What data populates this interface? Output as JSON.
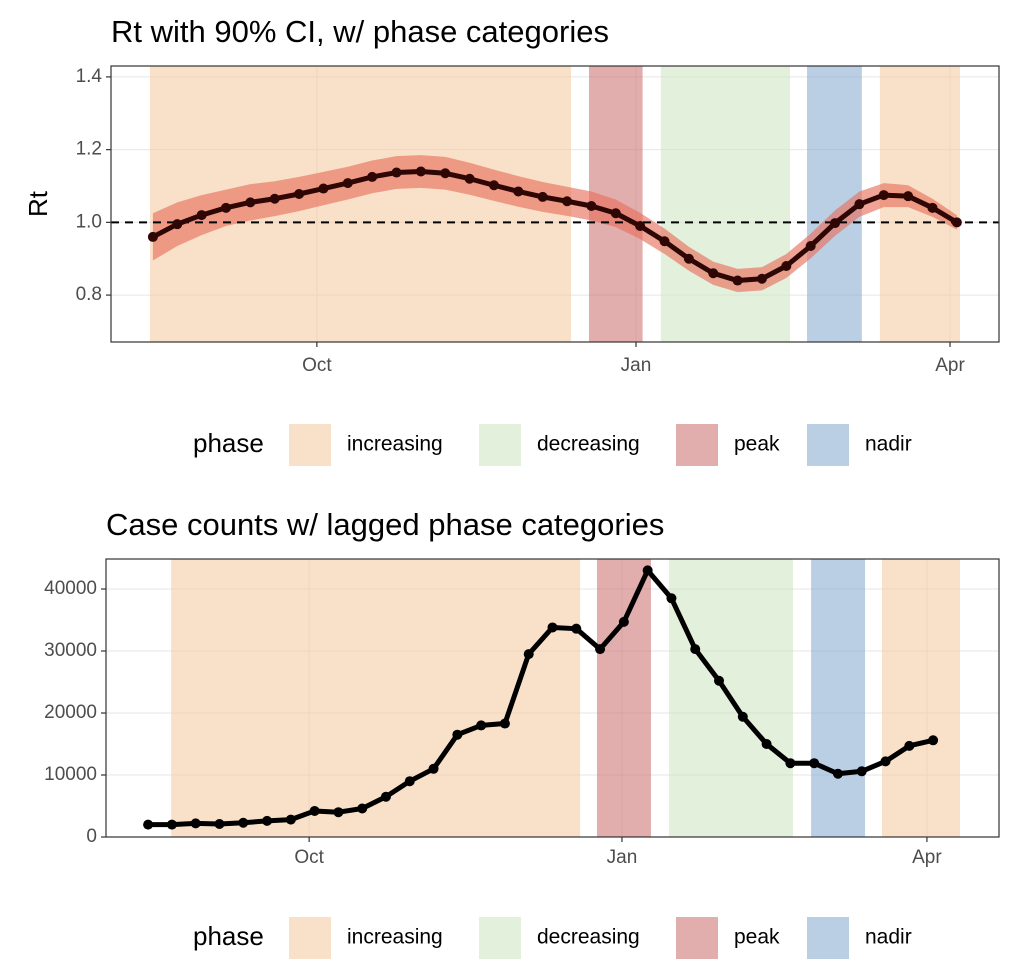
{
  "chart_data": [
    {
      "type": "line",
      "title": "Rt with 90% CI, w/ phase categories",
      "y_label": "Rt",
      "x": [
        0,
        1,
        2,
        3,
        4,
        5,
        6,
        7,
        8,
        9,
        10,
        11,
        12,
        13,
        14,
        15,
        16,
        17,
        18,
        19,
        20,
        21,
        22,
        23,
        24,
        25,
        26,
        27,
        28,
        29,
        30,
        31,
        32,
        33
      ],
      "values": [
        0.96,
        0.995,
        1.02,
        1.04,
        1.055,
        1.065,
        1.078,
        1.093,
        1.108,
        1.125,
        1.137,
        1.14,
        1.135,
        1.12,
        1.102,
        1.085,
        1.07,
        1.058,
        1.045,
        1.025,
        0.99,
        0.948,
        0.9,
        0.86,
        0.84,
        0.845,
        0.88,
        0.935,
        0.998,
        1.05,
        1.075,
        1.072,
        1.04,
        1.0
      ],
      "lower": [
        0.895,
        0.935,
        0.965,
        0.99,
        1.005,
        1.017,
        1.031,
        1.047,
        1.063,
        1.08,
        1.092,
        1.095,
        1.09,
        1.076,
        1.059,
        1.043,
        1.029,
        1.018,
        1.005,
        0.987,
        0.954,
        0.913,
        0.867,
        0.828,
        0.808,
        0.813,
        0.847,
        0.901,
        0.963,
        1.015,
        1.042,
        1.042,
        1.015,
        0.98
      ],
      "upper": [
        1.025,
        1.055,
        1.075,
        1.09,
        1.105,
        1.113,
        1.125,
        1.139,
        1.153,
        1.17,
        1.182,
        1.185,
        1.18,
        1.164,
        1.145,
        1.127,
        1.111,
        1.098,
        1.085,
        1.063,
        1.026,
        0.983,
        0.933,
        0.892,
        0.872,
        0.877,
        0.913,
        0.969,
        1.033,
        1.085,
        1.108,
        1.102,
        1.065,
        1.02
      ],
      "color": "#2e0604",
      "ci_color": "#e8715f",
      "hline": 1,
      "xlim": [
        -1.72,
        34.73
      ],
      "xticks": [
        {
          "value": 6.73,
          "label": "Oct"
        },
        {
          "value": 19.83,
          "label": "Jan"
        },
        {
          "value": 32.72,
          "label": "Apr"
        }
      ],
      "ylim": [
        0.671,
        1.43
      ],
      "yticks": [
        0.8,
        {
          "value": 1,
          "label": "1.0"
        },
        1.2,
        1.4
      ],
      "grid": true,
      "legend": {
        "title": "phase",
        "items": [
          {
            "name": "increasing",
            "color": "#f2c89b",
            "ranges": [
              [
                -0.12,
                17.16
              ],
              [
                29.84,
                33.13
              ]
            ]
          },
          {
            "name": "decreasing",
            "color": "#cce4c0",
            "ranges": [
              [
                20.85,
                26.15
              ]
            ]
          },
          {
            "name": "peak",
            "color": "#ca6a6a",
            "ranges": [
              [
                17.9,
                20.1
              ]
            ]
          },
          {
            "name": "nadir",
            "color": "#82a8ce",
            "ranges": [
              [
                26.85,
                29.1
              ]
            ]
          }
        ]
      }
    },
    {
      "type": "line",
      "title": "Case counts w/ lagged phase categories",
      "x": [
        0,
        1,
        2,
        3,
        4,
        5,
        6,
        7,
        8,
        9,
        10,
        11,
        12,
        13,
        14,
        15,
        16,
        17,
        18,
        19,
        20,
        21,
        22,
        23,
        24,
        25,
        26,
        27,
        28,
        29,
        30,
        31,
        32,
        33
      ],
      "values": [
        2000,
        2000,
        2200,
        2100,
        2300,
        2600,
        2800,
        4200,
        4000,
        4600,
        6500,
        9000,
        11000,
        16500,
        18000,
        18300,
        29500,
        33800,
        33600,
        30300,
        34700,
        43000,
        38500,
        30300,
        25200,
        19400,
        15000,
        11900,
        11900,
        10200,
        10600,
        12200,
        14700,
        15600
      ],
      "color": "#000000",
      "xlim": [
        -1.77,
        35.77
      ],
      "xticks": [
        {
          "value": 6.77,
          "label": "Oct"
        },
        {
          "value": 19.92,
          "label": "Jan"
        },
        {
          "value": 32.74,
          "label": "Apr"
        }
      ],
      "ylim": [
        0,
        44840
      ],
      "yticks": [
        0,
        10000,
        20000,
        30000,
        40000
      ],
      "grid": true,
      "legend": {
        "title": "phase",
        "items": [
          {
            "name": "increasing",
            "color": "#f2c89b",
            "ranges": [
              [
                0.97,
                18.16
              ],
              [
                30.85,
                34.13
              ]
            ]
          },
          {
            "name": "decreasing",
            "color": "#cce4c0",
            "ranges": [
              [
                21.9,
                27.11
              ]
            ]
          },
          {
            "name": "peak",
            "color": "#ca6a6a",
            "ranges": [
              [
                18.87,
                21.14
              ]
            ]
          },
          {
            "name": "nadir",
            "color": "#82a8ce",
            "ranges": [
              [
                27.87,
                30.14
              ]
            ]
          }
        ]
      }
    }
  ]
}
